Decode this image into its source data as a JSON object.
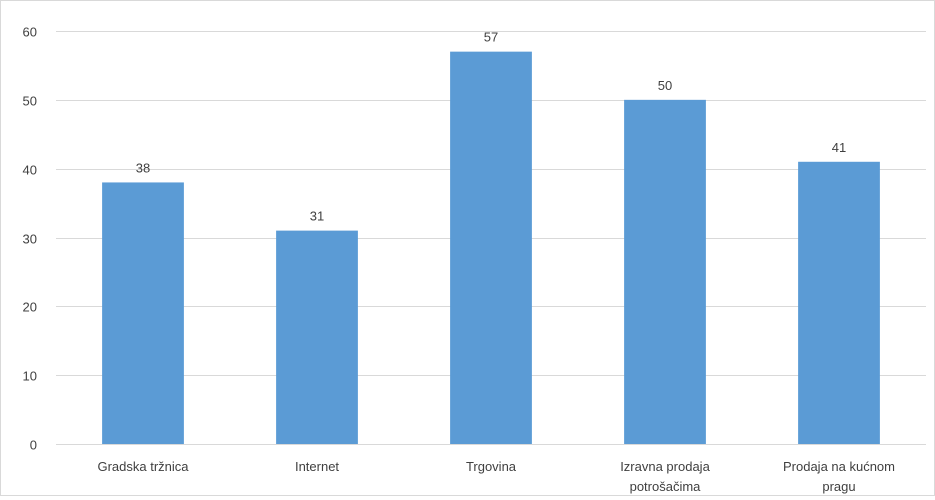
{
  "chart_data": {
    "type": "bar",
    "categories": [
      [
        "Gradska tržnica"
      ],
      [
        "Internet"
      ],
      [
        "Trgovina"
      ],
      [
        "Izravna prodaja",
        "potrošačima"
      ],
      [
        "Prodaja na kućnom",
        "pragu"
      ]
    ],
    "values": [
      38,
      31,
      57,
      50,
      41
    ],
    "ylim": [
      0,
      60
    ],
    "yticks": [
      0,
      10,
      20,
      30,
      40,
      50,
      60
    ],
    "grid": true,
    "data_labels": true,
    "bar_color": "#5b9bd5",
    "grid_color": "#d9d9d9",
    "text_color": "#404040"
  }
}
